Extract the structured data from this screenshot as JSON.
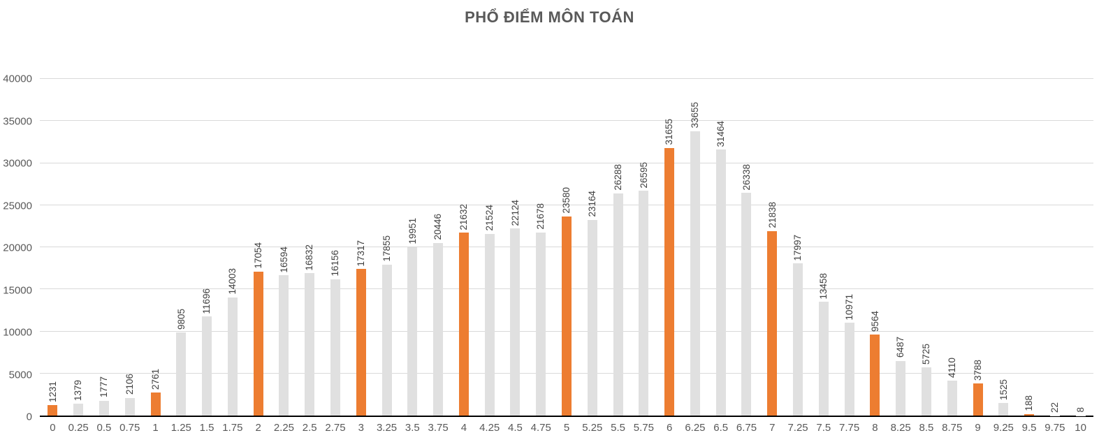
{
  "title": "PHỔ ĐIỂM MÔN TOÁN",
  "colors": {
    "bar_default": "#e0e0e0",
    "bar_highlight": "#ed7d31",
    "title_text": "#595959",
    "axis_text": "#595959",
    "value_label_text": "#404040",
    "gridline": "#d9d9d9",
    "axis_line": "#000000",
    "background": "#ffffff"
  },
  "chart_data": {
    "type": "bar",
    "title": "PHỔ ĐIỂM MÔN TOÁN",
    "xlabel": "",
    "ylabel": "",
    "categories": [
      "0",
      "0.25",
      "0.5",
      "0.75",
      "1",
      "1.25",
      "1.5",
      "1.75",
      "2",
      "2.25",
      "2.5",
      "2.75",
      "3",
      "3.25",
      "3.5",
      "3.75",
      "4",
      "4.25",
      "4.5",
      "4.75",
      "5",
      "5.25",
      "5.5",
      "5.75",
      "6",
      "6.25",
      "6.5",
      "6.75",
      "7",
      "7.25",
      "7.5",
      "7.75",
      "8",
      "8.25",
      "8.5",
      "8.75",
      "9",
      "9.25",
      "9.5",
      "9.75",
      "10"
    ],
    "values": [
      1231,
      1379,
      1777,
      2106,
      2761,
      9805,
      11696,
      14003,
      17054,
      16594,
      16832,
      16156,
      17317,
      17855,
      19951,
      20446,
      21632,
      21524,
      22124,
      21678,
      23580,
      23164,
      26288,
      26595,
      31655,
      33655,
      31464,
      26338,
      21838,
      17997,
      13458,
      10971,
      9564,
      6487,
      5725,
      4110,
      3788,
      1525,
      188,
      22,
      8
    ],
    "highlighted_categories": [
      "0",
      "1",
      "2",
      "3",
      "4",
      "5",
      "6",
      "7",
      "8",
      "9",
      "9.5"
    ],
    "ylim": [
      0,
      40000
    ],
    "yticks": [
      0,
      5000,
      10000,
      15000,
      20000,
      25000,
      30000,
      35000,
      40000
    ],
    "grid": "horizontal",
    "legend": "none",
    "value_labels": "rotated-vertical-above-bars"
  }
}
